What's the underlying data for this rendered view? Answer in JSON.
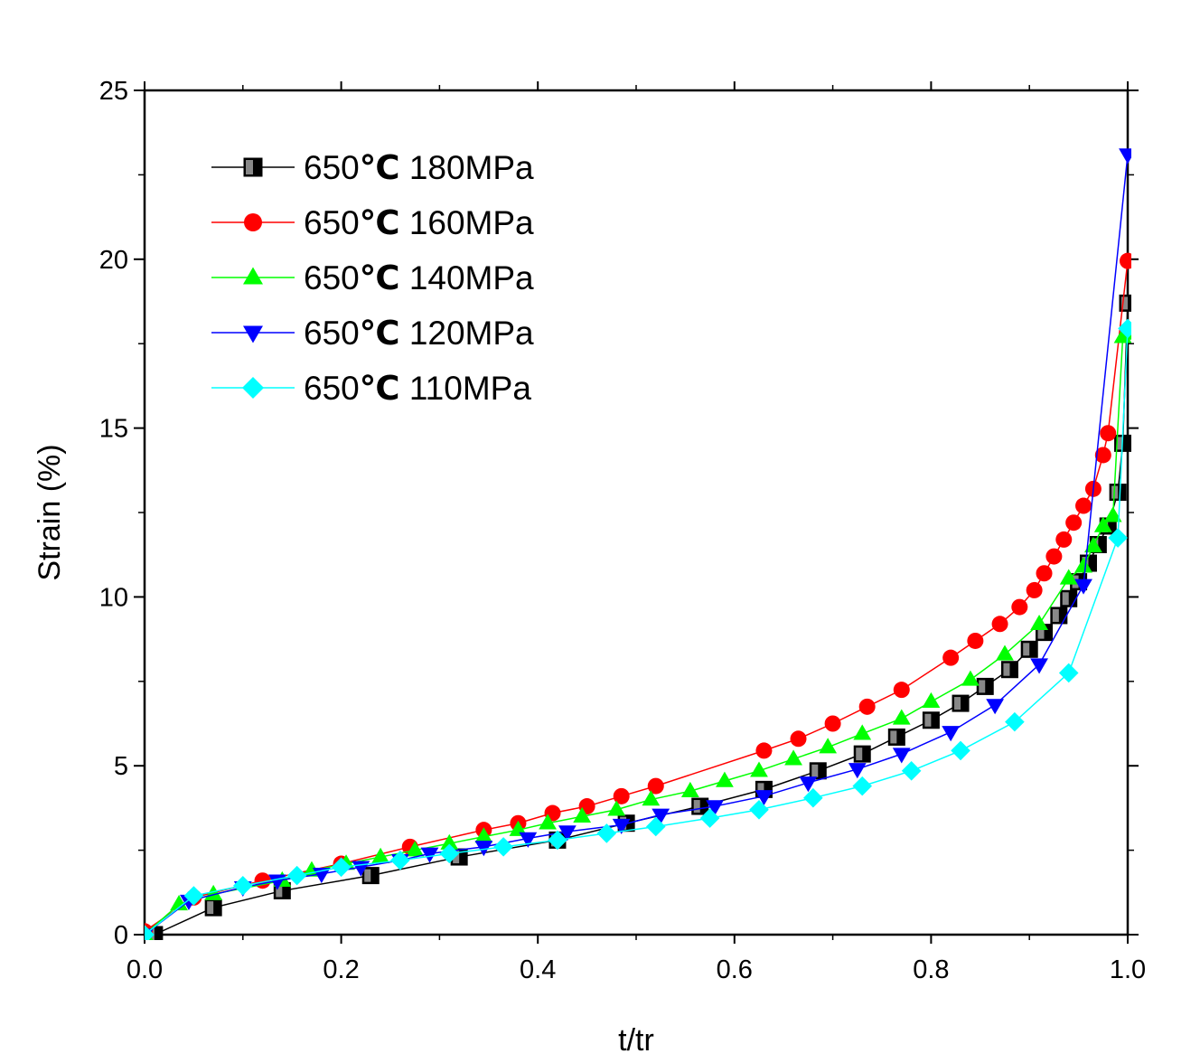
{
  "chart_data": {
    "type": "line",
    "xlabel": "t/tr",
    "ylabel": "Strain (%)",
    "xlim": [
      0.0,
      1.0
    ],
    "ylim": [
      0,
      25
    ],
    "x_ticks": [
      "0.0",
      "0.2",
      "0.4",
      "0.6",
      "0.8",
      "1.0"
    ],
    "y_ticks": [
      "0",
      "5",
      "10",
      "15",
      "20",
      "25"
    ],
    "grid": false,
    "legend_position": "top-left",
    "series": [
      {
        "name_prefix": "650",
        "name_unit": "℃",
        "name_suffix": " 180MPa",
        "color": "#000000",
        "marker": "square-half",
        "x": [
          0.01,
          0.07,
          0.14,
          0.23,
          0.32,
          0.42,
          0.49,
          0.565,
          0.63,
          0.685,
          0.73,
          0.765,
          0.8,
          0.83,
          0.855,
          0.88,
          0.9,
          0.915,
          0.93,
          0.94,
          0.95,
          0.96,
          0.97,
          0.98,
          0.99,
          0.995,
          1.0
        ],
        "y": [
          0.0,
          0.8,
          1.3,
          1.75,
          2.3,
          2.8,
          3.3,
          3.8,
          4.3,
          4.85,
          5.35,
          5.85,
          6.35,
          6.85,
          7.35,
          7.85,
          8.45,
          8.95,
          9.45,
          9.95,
          10.45,
          11.0,
          11.55,
          12.1,
          13.1,
          14.55,
          18.7
        ]
      },
      {
        "name_prefix": "650",
        "name_unit": "℃",
        "name_suffix": " 160MPa",
        "color": "#ff0000",
        "marker": "circle",
        "x": [
          0.0,
          0.05,
          0.12,
          0.2,
          0.27,
          0.345,
          0.38,
          0.415,
          0.45,
          0.485,
          0.52,
          0.63,
          0.665,
          0.7,
          0.735,
          0.77,
          0.82,
          0.845,
          0.87,
          0.89,
          0.905,
          0.915,
          0.925,
          0.935,
          0.945,
          0.955,
          0.965,
          0.975,
          0.98,
          1.0
        ],
        "y": [
          0.1,
          1.1,
          1.6,
          2.1,
          2.6,
          3.1,
          3.3,
          3.6,
          3.8,
          4.1,
          4.4,
          5.45,
          5.8,
          6.25,
          6.75,
          7.25,
          8.2,
          8.7,
          9.2,
          9.7,
          10.2,
          10.7,
          11.2,
          11.7,
          12.2,
          12.7,
          13.2,
          14.2,
          14.85,
          19.95
        ]
      },
      {
        "name_prefix": "650",
        "name_unit": "℃",
        "name_suffix": " 140MPa",
        "color": "#00ff00",
        "marker": "triangle-up",
        "x": [
          0.0,
          0.035,
          0.07,
          0.14,
          0.17,
          0.205,
          0.24,
          0.275,
          0.31,
          0.345,
          0.38,
          0.41,
          0.445,
          0.48,
          0.515,
          0.555,
          0.59,
          0.625,
          0.66,
          0.695,
          0.73,
          0.77,
          0.8,
          0.84,
          0.875,
          0.91,
          0.94,
          0.955,
          0.965,
          0.975,
          0.985,
          0.995,
          1.0
        ],
        "y": [
          0.0,
          0.9,
          1.2,
          1.6,
          1.9,
          2.1,
          2.3,
          2.5,
          2.7,
          2.9,
          3.1,
          3.3,
          3.5,
          3.7,
          4.0,
          4.25,
          4.55,
          4.85,
          5.2,
          5.55,
          5.95,
          6.4,
          6.9,
          7.55,
          8.3,
          9.2,
          10.55,
          10.9,
          11.5,
          12.1,
          12.4,
          17.7,
          17.8
        ]
      },
      {
        "name_prefix": "650",
        "name_unit": "℃",
        "name_suffix": " 120MPa",
        "color": "#0000ff",
        "marker": "triangle-down",
        "x": [
          0.0,
          0.045,
          0.1,
          0.135,
          0.18,
          0.22,
          0.26,
          0.29,
          0.345,
          0.39,
          0.43,
          0.485,
          0.525,
          0.58,
          0.63,
          0.675,
          0.725,
          0.77,
          0.82,
          0.865,
          0.91,
          0.955,
          1.0
        ],
        "y": [
          0.0,
          1.0,
          1.4,
          1.6,
          1.8,
          2.0,
          2.2,
          2.4,
          2.6,
          2.85,
          3.05,
          3.25,
          3.55,
          3.8,
          4.1,
          4.5,
          4.9,
          5.35,
          6.0,
          6.8,
          8.0,
          10.35,
          23.1
        ]
      },
      {
        "name_prefix": "650",
        "name_unit": "℃",
        "name_suffix": " 110MPa",
        "color": "#00ffff",
        "marker": "diamond",
        "x": [
          0.0,
          0.05,
          0.1,
          0.155,
          0.2,
          0.26,
          0.31,
          0.365,
          0.42,
          0.47,
          0.52,
          0.575,
          0.625,
          0.68,
          0.73,
          0.78,
          0.83,
          0.885,
          0.94,
          0.99,
          1.0
        ],
        "y": [
          0.0,
          1.15,
          1.45,
          1.75,
          2.0,
          2.2,
          2.4,
          2.6,
          2.8,
          3.0,
          3.2,
          3.45,
          3.7,
          4.05,
          4.4,
          4.85,
          5.45,
          6.3,
          7.75,
          11.75,
          17.95
        ]
      }
    ]
  }
}
